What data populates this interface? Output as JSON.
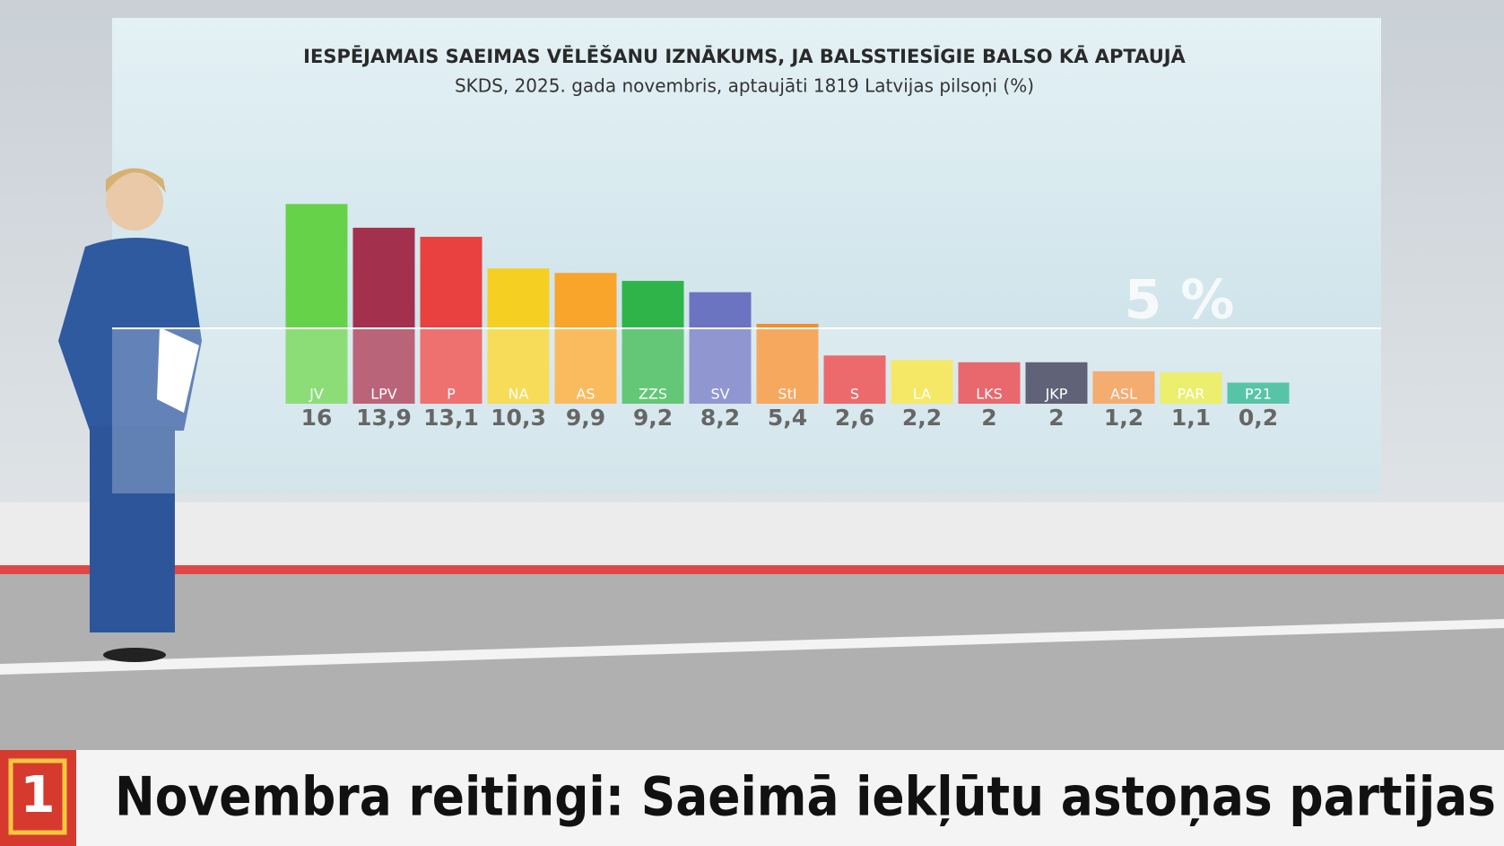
{
  "chart_data": {
    "type": "bar",
    "title": "IESPĒJAMAIS SAEIMAS VĒLĒŠANU IZNĀKUMS, JA BALSSTIESĪGIE BALSO KĀ APTAUJĀ",
    "subtitle": "SKDS, 2025. gada novembris, aptaujāti 1819 Latvijas pilsoņi (%)",
    "categories": [
      "JV",
      "LPV",
      "P",
      "NA",
      "AS",
      "ZZS",
      "SV",
      "StI",
      "S",
      "LA",
      "LKS",
      "JKP",
      "ASL",
      "PAR",
      "P21"
    ],
    "values": [
      16,
      13.9,
      13.1,
      10.3,
      9.9,
      9.2,
      8.2,
      5.4,
      2.6,
      2.2,
      2,
      2,
      1.2,
      1.1,
      0.2
    ],
    "value_labels": [
      "16",
      "13,9",
      "13,1",
      "10,3",
      "9,9",
      "9,2",
      "8,2",
      "5,4",
      "2,6",
      "2,2",
      "2",
      "2",
      "1,2",
      "1,1",
      "0,2"
    ],
    "colors": [
      "#66d24a",
      "#a3304c",
      "#e8413f",
      "#f5d022",
      "#f9a42a",
      "#2fb44a",
      "#6b74c0",
      "#f58b2a",
      "#e6383b",
      "#f3e035",
      "#e0363e",
      "#2b2f4a",
      "#f09040",
      "#e6e83e",
      "#20b08a"
    ],
    "threshold": {
      "value": 5,
      "label": "5 %"
    }
  },
  "banner": {
    "logo": "1",
    "headline": "Novembra reitingi: Saeimā iekļūtu astoņas partijas"
  }
}
